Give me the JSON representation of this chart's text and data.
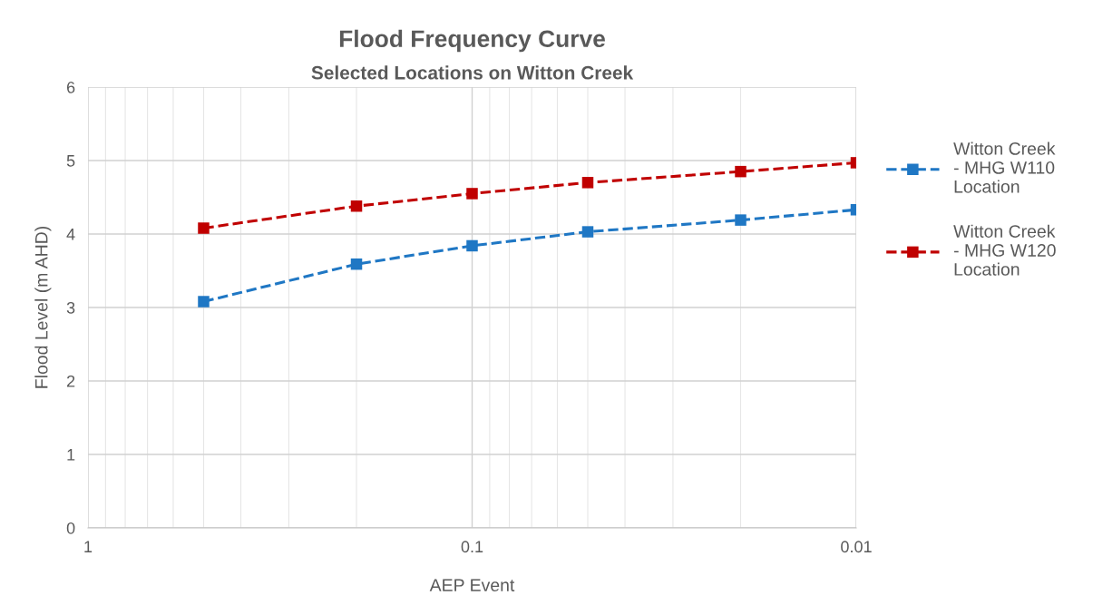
{
  "chart_data": {
    "type": "line",
    "title": "Flood Frequency Curve",
    "subtitle": "Selected Locations on Witton Creek",
    "xlabel": "AEP Event",
    "ylabel": "Flood Level (m AHD)",
    "x": [
      0.5,
      0.2,
      0.1,
      0.05,
      0.02,
      0.01
    ],
    "series": [
      {
        "name": "Witton Creek - MHG W110 Location",
        "color": "#1f77c4",
        "values": [
          3.08,
          3.59,
          3.84,
          4.03,
          4.19,
          4.33
        ]
      },
      {
        "name": "Witton Creek - MHG W120 Location",
        "color": "#c00000",
        "values": [
          4.08,
          4.38,
          4.55,
          4.7,
          4.85,
          4.97
        ]
      }
    ],
    "log": "x",
    "xlim": [
      1,
      0.01
    ],
    "xticks": [
      1,
      0.1,
      0.01
    ],
    "ylim": [
      0,
      6
    ],
    "yticks": [
      0,
      1,
      2,
      3,
      4,
      5,
      6
    ],
    "grid": true,
    "legend": "right",
    "marker": "square",
    "line_style": "dashed"
  }
}
